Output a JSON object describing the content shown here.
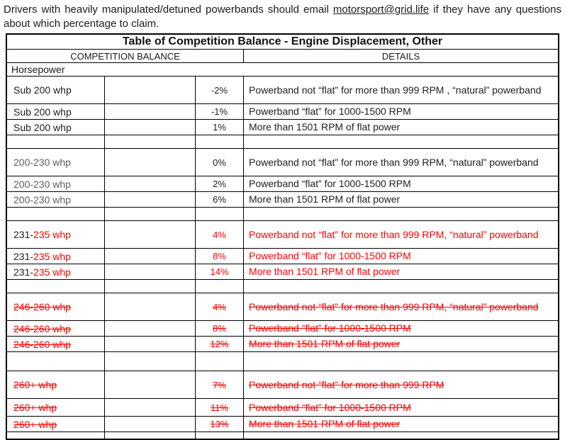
{
  "intro": {
    "text_before": "Drivers with heavily manipulated/detuned powerbands should email ",
    "email": "motorsport@grid.life",
    "text_after": " if they have any questions about which percentage to claim."
  },
  "table": {
    "title": "Table of Competition Balance - Engine Displacement, Other",
    "headers": {
      "balance": "COMPETITION BALANCE",
      "details": "DETAILS"
    },
    "section_label": "Horsepower",
    "colors": {
      "red": "#ff0000",
      "gray": "#5f5f5f",
      "black": "#202020"
    },
    "rows": [
      {
        "label": "Sub 200 whp",
        "pct": "-2%",
        "details": "Powerband not “flat” for more than 999 RPM , “natural” powerband",
        "variant": "plain",
        "tall": true
      },
      {
        "label": "Sub 200 whp",
        "pct": "-1%",
        "details": "Powerband “flat” for 1000-1500 RPM",
        "variant": "plain"
      },
      {
        "label": "Sub 200 whp",
        "pct": "1%",
        "details": "More than 1501 RPM of flat power",
        "variant": "plain"
      },
      {
        "variant": "spacer"
      },
      {
        "label": "200-230 whp",
        "pct": "0%",
        "details": "Powerband not “flat” for more than 999 RPM, “natural” powerband",
        "variant": "graylabel",
        "tall": true
      },
      {
        "label": "200-230 whp",
        "pct": "2%",
        "details": "Powerband “flat” for 1000-1500 RPM",
        "variant": "graylabel"
      },
      {
        "label": "200-230 whp",
        "pct": "6%",
        "details": "More than 1501 RPM of flat power",
        "variant": "graylabel"
      },
      {
        "variant": "spacer"
      },
      {
        "prefix": "231-",
        "label": "235 whp",
        "pct": "4%",
        "details": "Powerband not “flat” for more than 999 RPM, “natural” powerband",
        "variant": "red",
        "tall": true
      },
      {
        "prefix": "231-",
        "label": "235 whp",
        "pct": "8%",
        "details": "Powerband “flat” for 1000-1500 RPM",
        "variant": "red"
      },
      {
        "prefix": "231-",
        "label": "235 whp",
        "pct": "14%",
        "details": "More than 1501 RPM of flat power",
        "variant": "red"
      },
      {
        "variant": "spacer"
      },
      {
        "label": "246-260 whp",
        "pct": "4%",
        "details": "Powerband not “flat” for more than 999 RPM, “natural” powerband",
        "variant": "redstrike",
        "tall": true
      },
      {
        "label": "246-260 whp",
        "pct": "8%",
        "details": "Powerband “flat” for 1000-1500 RPM",
        "variant": "redstrike"
      },
      {
        "label": "246-260 whp",
        "pct": "12%",
        "details": "More than 1501 RPM of flat power",
        "variant": "redstrike"
      },
      {
        "variant": "spacer",
        "h": 27
      },
      {
        "label": "260+ whp",
        "pct": "7%",
        "details": "Powerband not “flat” for more than 999 RPM",
        "variant": "redstrike",
        "tall": true
      },
      {
        "label": "260+ whp",
        "pct": "11%",
        "details": "Powerband “flat” for 1000-1500 RPM",
        "variant": "redstrike",
        "h": 25
      },
      {
        "label": "260+ whp",
        "pct": "13%",
        "details": "More than 1501 RPM of flat power",
        "variant": "redstrike"
      },
      {
        "variant": "spacer",
        "h": 10
      }
    ]
  }
}
